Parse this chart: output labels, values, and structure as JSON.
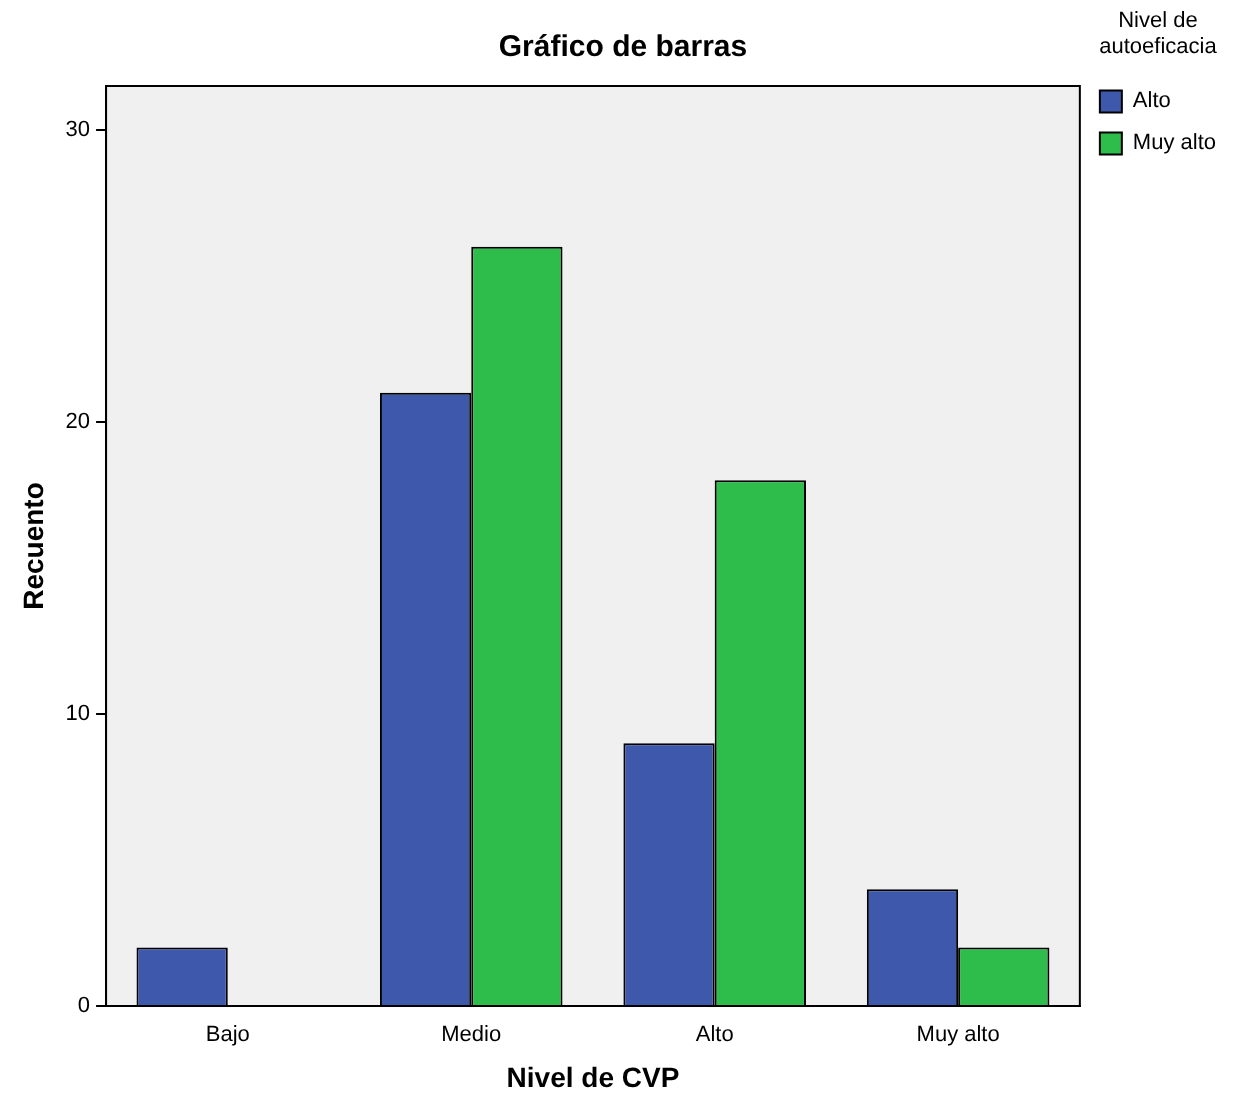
{
  "chart_data": {
    "type": "bar",
    "title": "Gráfico de barras",
    "xlabel": "Nivel de CVP",
    "ylabel": "Recuento",
    "legend_title": "Nivel de autoeficacia",
    "categories": [
      "Bajo",
      "Medio",
      "Alto",
      "Muy alto"
    ],
    "series": [
      {
        "name": "Alto",
        "color": "#3e58ac",
        "values": [
          2,
          21,
          9,
          4
        ]
      },
      {
        "name": "Muy alto",
        "color": "#2ebd4a",
        "values": [
          null,
          26,
          18,
          2
        ]
      }
    ],
    "ylim": [
      0,
      31.5
    ],
    "yticks": [
      0,
      10,
      20,
      30
    ],
    "grid": false,
    "legend": "top right"
  }
}
